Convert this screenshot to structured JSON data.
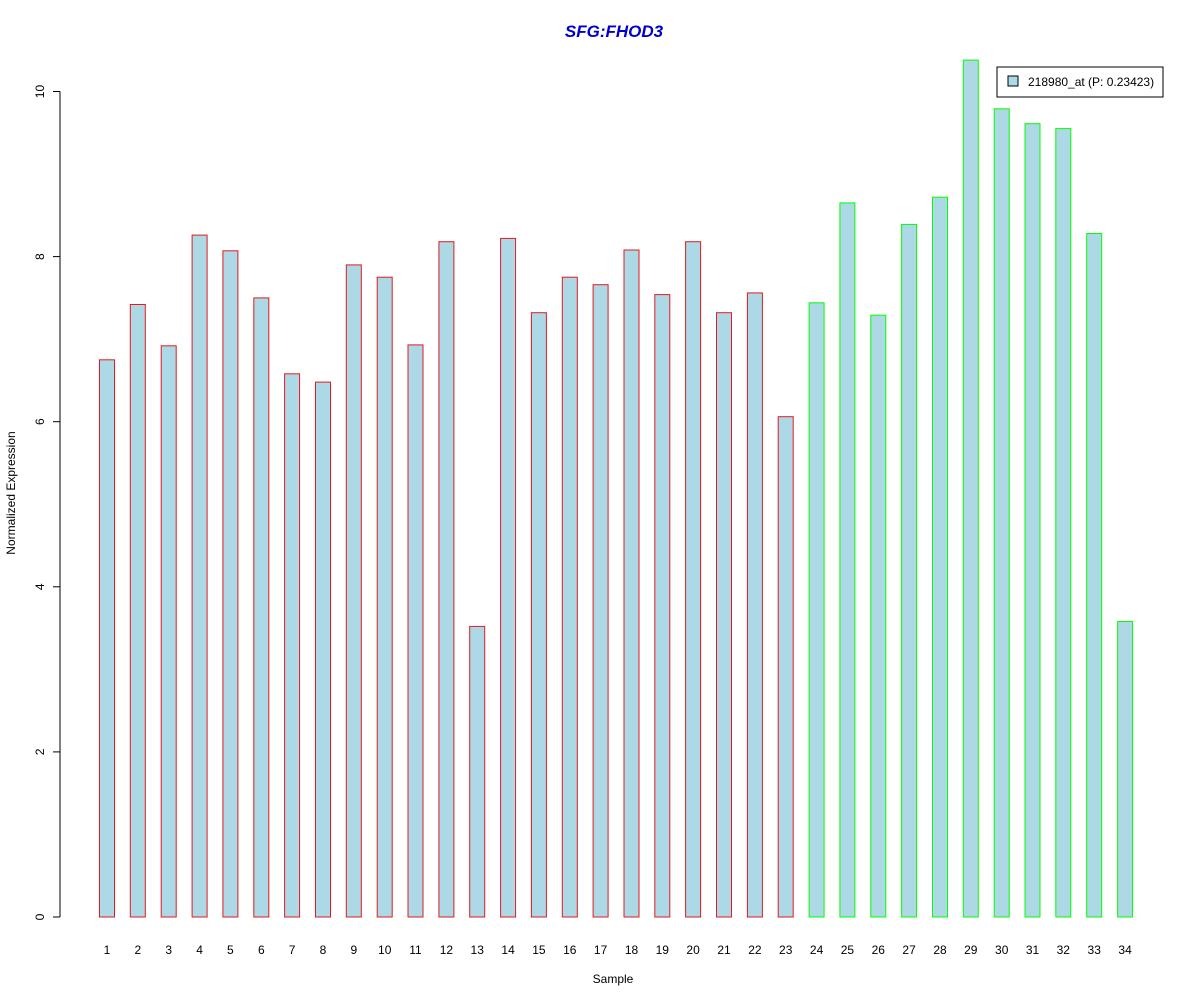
{
  "chart_data": {
    "type": "bar",
    "title": "SFG:FHOD3",
    "xlabel": "Sample",
    "ylabel": "Normalized Expression",
    "categories": [
      "1",
      "2",
      "3",
      "4",
      "5",
      "6",
      "7",
      "8",
      "9",
      "10",
      "11",
      "12",
      "13",
      "14",
      "15",
      "16",
      "17",
      "18",
      "19",
      "20",
      "21",
      "22",
      "23",
      "24",
      "25",
      "26",
      "27",
      "28",
      "29",
      "30",
      "31",
      "32",
      "33",
      "34"
    ],
    "series": [
      {
        "name": "218980_at (P: 0.23423)",
        "values": [
          6.75,
          7.42,
          6.92,
          8.26,
          8.07,
          7.5,
          6.58,
          6.48,
          7.9,
          7.75,
          6.93,
          8.18,
          3.52,
          8.22,
          7.32,
          7.75,
          7.66,
          8.08,
          7.54,
          8.18,
          7.32,
          7.56,
          6.06,
          7.44,
          8.65,
          7.29,
          8.39,
          8.72,
          10.38,
          9.79,
          9.61,
          9.55,
          8.28,
          3.58
        ]
      }
    ],
    "ylim": [
      0,
      10.4
    ],
    "yticks": [
      0,
      2,
      4,
      6,
      8,
      10
    ],
    "grid": false,
    "legend_position": "top-right",
    "colors": {
      "bar_fill": "#add8e6",
      "group1_border": "#e41a1c",
      "group2_border": "#00ff00",
      "title": "#0000cc",
      "axis": "#000000"
    },
    "border_groups": [
      {
        "from": 1,
        "to": 23,
        "color": "#e41a1c"
      },
      {
        "from": 24,
        "to": 34,
        "color": "#00ff00"
      }
    ]
  }
}
